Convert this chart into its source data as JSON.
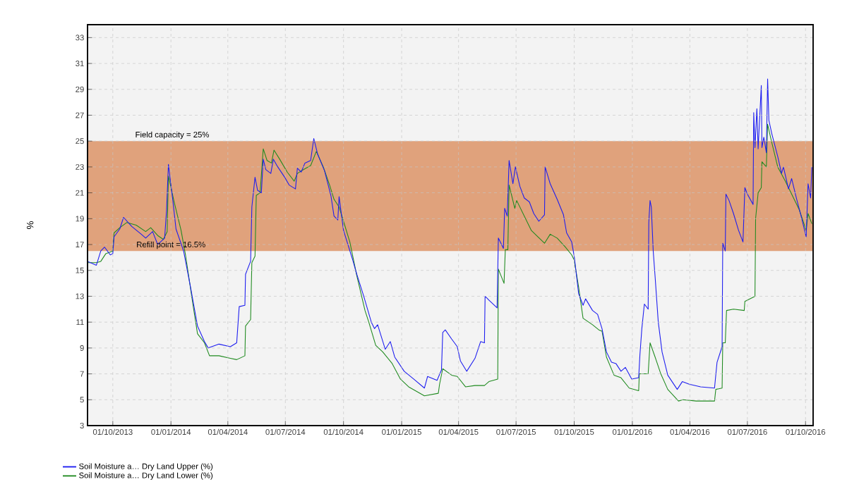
{
  "chart_data": {
    "type": "line",
    "ylabel": "%",
    "xlim": [
      "2013-08-22",
      "2016-10-13"
    ],
    "ylim": [
      3,
      34
    ],
    "yticks": [
      3,
      5,
      7,
      9,
      11,
      13,
      15,
      17,
      19,
      21,
      23,
      25,
      27,
      29,
      31,
      33
    ],
    "xticks": [
      {
        "value": "2013-10-01",
        "label": "01/10/2013"
      },
      {
        "value": "2014-01-01",
        "label": "01/01/2014"
      },
      {
        "value": "2014-04-01",
        "label": "01/04/2014"
      },
      {
        "value": "2014-07-01",
        "label": "01/07/2014"
      },
      {
        "value": "2014-10-01",
        "label": "01/10/2014"
      },
      {
        "value": "2015-01-01",
        "label": "01/01/2015"
      },
      {
        "value": "2015-04-01",
        "label": "01/04/2015"
      },
      {
        "value": "2015-07-01",
        "label": "01/07/2015"
      },
      {
        "value": "2015-10-01",
        "label": "01/10/2015"
      },
      {
        "value": "2016-01-01",
        "label": "01/01/2016"
      },
      {
        "value": "2016-04-01",
        "label": "01/04/2016"
      },
      {
        "value": "2016-07-01",
        "label": "01/07/2016"
      },
      {
        "value": "2016-10-01",
        "label": "01/10/2016"
      }
    ],
    "grid": true,
    "legend": "bottom left",
    "bands": [
      {
        "axis": "y",
        "from": 16.5,
        "to": 25,
        "color": "#e0a27c"
      }
    ],
    "annotations": [
      {
        "text": "Field capacity = 25%",
        "x": "2014-01-03",
        "y": 25
      },
      {
        "text": "Refill point = 16.5%",
        "x": "2014-01-01",
        "y": 16.5
      }
    ],
    "series": [
      {
        "name": "Soil Moisture a… Dry Land Upper (%)",
        "color": "#1c1cf0",
        "x": [
          "2013-08-22",
          "2013-09-05",
          "2013-09-12",
          "2013-09-18",
          "2013-09-27",
          "2013-10-01",
          "2013-10-03",
          "2013-10-12",
          "2013-10-18",
          "2013-10-31",
          "2013-11-15",
          "2013-11-22",
          "2013-12-03",
          "2013-12-11",
          "2013-12-22",
          "2013-12-25",
          "2013-12-28",
          "2013-12-31",
          "2014-01-04",
          "2014-01-09",
          "2014-01-21",
          "2014-02-01",
          "2014-02-12",
          "2014-02-23",
          "2014-03-01",
          "2014-03-18",
          "2014-04-05",
          "2014-04-15",
          "2014-04-19",
          "2014-04-28",
          "2014-04-29",
          "2014-05-07",
          "2014-05-09",
          "2014-05-14",
          "2014-05-18",
          "2014-05-24",
          "2014-05-27",
          "2014-05-31",
          "2014-06-08",
          "2014-06-12",
          "2014-06-19",
          "2014-06-30",
          "2014-07-07",
          "2014-07-17",
          "2014-07-20",
          "2014-07-26",
          "2014-08-01",
          "2014-08-10",
          "2014-08-15",
          "2014-08-21",
          "2014-09-01",
          "2014-09-11",
          "2014-09-16",
          "2014-09-22",
          "2014-09-24",
          "2014-10-01",
          "2014-10-15",
          "2014-10-22",
          "2014-11-02",
          "2014-11-14",
          "2014-11-19",
          "2014-11-24",
          "2014-12-06",
          "2014-12-14",
          "2014-12-21",
          "2015-01-05",
          "2015-01-20",
          "2015-02-06",
          "2015-02-11",
          "2015-02-26",
          "2015-03-05",
          "2015-03-07",
          "2015-03-11",
          "2015-03-21",
          "2015-03-30",
          "2015-04-04",
          "2015-04-14",
          "2015-04-27",
          "2015-05-06",
          "2015-05-12",
          "2015-05-13",
          "2015-05-19",
          "2015-06-01",
          "2015-06-03",
          "2015-06-11",
          "2015-06-13",
          "2015-06-17",
          "2015-06-20",
          "2015-06-26",
          "2015-06-30",
          "2015-07-07",
          "2015-07-14",
          "2015-07-22",
          "2015-07-29",
          "2015-08-06",
          "2015-08-15",
          "2015-08-16",
          "2015-08-24",
          "2015-09-04",
          "2015-09-14",
          "2015-09-19",
          "2015-09-27",
          "2015-10-01",
          "2015-10-08",
          "2015-10-15",
          "2015-10-19",
          "2015-10-30",
          "2015-11-07",
          "2015-11-14",
          "2015-11-21",
          "2015-11-29",
          "2015-12-06",
          "2015-12-14",
          "2015-12-21",
          "2015-12-31",
          "2016-01-11",
          "2016-01-13",
          "2016-01-16",
          "2016-01-20",
          "2016-01-26",
          "2016-01-27",
          "2016-01-29",
          "2016-01-31",
          "2016-02-03",
          "2016-02-06",
          "2016-02-11",
          "2016-02-17",
          "2016-02-26",
          "2016-03-12",
          "2016-03-20",
          "2016-03-31",
          "2016-04-18",
          "2016-05-10",
          "2016-05-14",
          "2016-05-22",
          "2016-05-23",
          "2016-05-27",
          "2016-05-28",
          "2016-06-02",
          "2016-06-09",
          "2016-06-17",
          "2016-06-24",
          "2016-06-27",
          "2016-07-01",
          "2016-07-10",
          "2016-07-11",
          "2016-07-13",
          "2016-07-16",
          "2016-07-18",
          "2016-07-23",
          "2016-07-24",
          "2016-07-27",
          "2016-07-31",
          "2016-08-02",
          "2016-08-04",
          "2016-08-09",
          "2016-08-18",
          "2016-08-24",
          "2016-08-27",
          "2016-09-04",
          "2016-09-09",
          "2016-09-17",
          "2016-09-24",
          "2016-10-02",
          "2016-10-05",
          "2016-10-09",
          "2016-10-11"
        ],
        "values": [
          15.7,
          15.4,
          16.5,
          16.8,
          16.2,
          16.3,
          17.6,
          18.2,
          19.1,
          18.4,
          17.8,
          17.5,
          18.0,
          17.0,
          17.5,
          19.6,
          23.2,
          22.0,
          20.4,
          18.2,
          16.5,
          13.7,
          10.7,
          9.5,
          9.0,
          9.3,
          9.1,
          9.4,
          12.2,
          12.3,
          14.7,
          15.7,
          19.9,
          22.2,
          21.2,
          21.0,
          23.6,
          22.8,
          22.5,
          23.6,
          23.0,
          22.2,
          21.6,
          21.3,
          22.9,
          22.6,
          23.3,
          23.5,
          25.2,
          24.0,
          22.7,
          20.8,
          19.2,
          18.9,
          20.7,
          18.1,
          15.9,
          14.7,
          13.0,
          11.0,
          10.5,
          10.8,
          8.9,
          9.5,
          8.3,
          7.2,
          6.6,
          5.9,
          6.8,
          6.5,
          7.3,
          10.2,
          10.4,
          9.7,
          9.1,
          8.0,
          7.2,
          8.2,
          9.5,
          9.4,
          13.0,
          12.7,
          12.1,
          17.5,
          16.7,
          19.8,
          19.2,
          23.5,
          21.7,
          23.0,
          21.5,
          20.6,
          20.3,
          19.4,
          18.8,
          19.3,
          23.0,
          21.7,
          20.5,
          19.3,
          17.9,
          17.2,
          16.1,
          13.2,
          12.3,
          12.8,
          11.9,
          11.6,
          10.5,
          8.7,
          7.9,
          7.8,
          7.2,
          7.5,
          6.6,
          6.7,
          8.5,
          10.5,
          12.4,
          12.0,
          18.7,
          20.4,
          19.9,
          16.5,
          14.5,
          11.0,
          8.7,
          6.9,
          5.8,
          6.4,
          6.2,
          6.0,
          5.9,
          7.9,
          9.1,
          17.1,
          16.5,
          20.9,
          20.4,
          19.4,
          18.1,
          17.2,
          21.4,
          20.9,
          20.1,
          27.2,
          24.5,
          27.5,
          24.4,
          29.3,
          24.5,
          25.3,
          24.1,
          29.8,
          26.6,
          25.5,
          23.8,
          22.5,
          23.0,
          21.3,
          22.1,
          20.5,
          19.2,
          17.6,
          21.7,
          20.6,
          23.0
        ]
      },
      {
        "name": "Soil Moisture a… Dry Land Lower (%)",
        "color": "#1f8a1f",
        "x": [
          "2013-08-22",
          "2013-09-05",
          "2013-09-12",
          "2013-09-20",
          "2013-10-01",
          "2013-10-03",
          "2013-10-12",
          "2013-10-23",
          "2013-11-07",
          "2013-11-22",
          "2013-11-30",
          "2013-12-11",
          "2013-12-20",
          "2013-12-26",
          "2013-12-28",
          "2014-01-06",
          "2014-01-17",
          "2014-01-24",
          "2014-02-05",
          "2014-02-12",
          "2014-02-23",
          "2014-03-03",
          "2014-03-18",
          "2014-04-05",
          "2014-04-15",
          "2014-04-28",
          "2014-04-29",
          "2014-05-07",
          "2014-05-09",
          "2014-05-14",
          "2014-05-16",
          "2014-05-22",
          "2014-05-27",
          "2014-06-02",
          "2014-06-09",
          "2014-06-13",
          "2014-06-22",
          "2014-07-04",
          "2014-07-15",
          "2014-07-20",
          "2014-07-30",
          "2014-08-10",
          "2014-08-19",
          "2014-08-30",
          "2014-09-09",
          "2014-09-16",
          "2014-09-24",
          "2014-10-01",
          "2014-10-11",
          "2014-10-22",
          "2014-11-04",
          "2014-11-10",
          "2014-11-21",
          "2014-12-02",
          "2014-12-17",
          "2014-12-30",
          "2015-01-12",
          "2015-02-06",
          "2015-02-28",
          "2015-03-02",
          "2015-03-07",
          "2015-03-21",
          "2015-03-30",
          "2015-04-12",
          "2015-04-27",
          "2015-05-12",
          "2015-05-19",
          "2015-06-02",
          "2015-06-03",
          "2015-06-12",
          "2015-06-14",
          "2015-06-18",
          "2015-06-20",
          "2015-06-29",
          "2015-07-02",
          "2015-07-25",
          "2015-08-15",
          "2015-08-24",
          "2015-09-04",
          "2015-09-17",
          "2015-09-27",
          "2015-10-01",
          "2015-10-08",
          "2015-10-15",
          "2015-10-30",
          "2015-11-09",
          "2015-11-14",
          "2015-11-21",
          "2015-12-03",
          "2015-12-14",
          "2015-12-27",
          "2016-01-11",
          "2016-01-12",
          "2016-01-26",
          "2016-01-29",
          "2016-02-06",
          "2016-02-15",
          "2016-02-26",
          "2016-03-14",
          "2016-03-21",
          "2016-04-11",
          "2016-05-10",
          "2016-05-12",
          "2016-05-22",
          "2016-05-23",
          "2016-05-27",
          "2016-05-29",
          "2016-06-09",
          "2016-06-26",
          "2016-06-27",
          "2016-07-13",
          "2016-07-14",
          "2016-07-18",
          "2016-07-23",
          "2016-07-24",
          "2016-07-31",
          "2016-08-02",
          "2016-08-08",
          "2016-08-18",
          "2016-08-30",
          "2016-09-10",
          "2016-09-21",
          "2016-10-02",
          "2016-10-05",
          "2016-10-11"
        ],
        "values": [
          15.6,
          15.6,
          15.7,
          16.3,
          16.5,
          17.9,
          18.3,
          18.7,
          18.5,
          18.0,
          18.3,
          17.7,
          17.4,
          18.0,
          22.3,
          20.3,
          18.1,
          16.2,
          12.3,
          10.1,
          9.4,
          8.4,
          8.4,
          8.2,
          8.1,
          8.4,
          10.7,
          11.2,
          15.6,
          16.1,
          20.8,
          21.0,
          24.4,
          23.5,
          23.3,
          24.3,
          23.6,
          22.6,
          21.9,
          22.5,
          22.8,
          23.1,
          24.2,
          23.0,
          21.6,
          20.5,
          19.9,
          18.8,
          17.2,
          14.6,
          11.9,
          11.0,
          9.2,
          8.7,
          7.8,
          6.6,
          6.0,
          5.3,
          5.5,
          6.2,
          7.4,
          6.9,
          6.8,
          6.0,
          6.1,
          6.1,
          6.4,
          6.6,
          15.1,
          14.0,
          16.6,
          16.6,
          21.6,
          19.8,
          20.4,
          18.1,
          17.1,
          17.8,
          17.5,
          16.8,
          16.2,
          15.8,
          13.7,
          11.3,
          10.8,
          10.4,
          10.3,
          8.3,
          6.9,
          6.7,
          5.9,
          5.7,
          7.0,
          7.0,
          9.4,
          8.3,
          7.0,
          5.8,
          4.9,
          5.0,
          4.9,
          4.9,
          5.8,
          5.9,
          9.4,
          9.4,
          11.9,
          12.0,
          11.9,
          12.6,
          13.0,
          19.0,
          21.0,
          21.4,
          23.4,
          23.0,
          26.3,
          25.0,
          23.0,
          21.9,
          20.8,
          19.7,
          18.1,
          19.4,
          18.6
        ]
      }
    ]
  }
}
